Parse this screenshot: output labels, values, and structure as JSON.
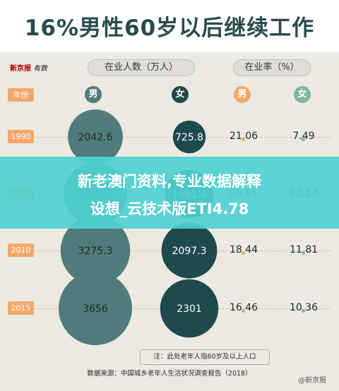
{
  "title": "16%男性60岁以后继续工作",
  "logo": {
    "brand": "新京报",
    "section": "有数"
  },
  "headers": {
    "employed": "在业人数（万人）",
    "rate": "在业率（%）",
    "year": "年份"
  },
  "gender_labels": {
    "male": "男",
    "female": "女"
  },
  "colors": {
    "male": "#4f7c7a",
    "female": "#1f4a4d",
    "male_rate": "#f3a86a",
    "female_rate": "#7db7a6",
    "year_badge": "#f3a86a",
    "banner": "#4ed0d3"
  },
  "banner": {
    "line1": "新老澳门资料,专业数据解释",
    "line2": "设想_云技术版ETI4.78"
  },
  "note": "注：此处老年人指60岁及以上人口",
  "source": "数据来源：中国城乡老年人生活状况调查报告（2018）",
  "watermark": "@新京报",
  "chart_data": {
    "type": "table",
    "categories": [
      "1990",
      "2000",
      "2010",
      "2015"
    ],
    "series": [
      {
        "name": "在业人数男",
        "values": [
          2042.6,
          2704.5,
          3275.3,
          3656
        ]
      },
      {
        "name": "在业人数女",
        "values": [
          725.8,
          1581.4,
          2097.3,
          2301
        ]
      },
      {
        "name": "在业率男",
        "values": [
          21.06,
          20.85,
          18.44,
          16.46
        ]
      },
      {
        "name": "在业率女",
        "values": [
          7.49,
          12.17,
          11.81,
          10.36
        ]
      }
    ],
    "value_labels": {
      "male_count": [
        "2042.6",
        "2704.5",
        "3275.3",
        "3656"
      ],
      "female_count": [
        "725.8",
        "1581.4",
        "2097.3",
        "2301"
      ],
      "male_rate": [
        "21.06",
        "20.85",
        "18.44",
        "16.46"
      ],
      "female_rate": [
        "7.49",
        "12.17",
        "11.81",
        "10.36"
      ]
    }
  }
}
